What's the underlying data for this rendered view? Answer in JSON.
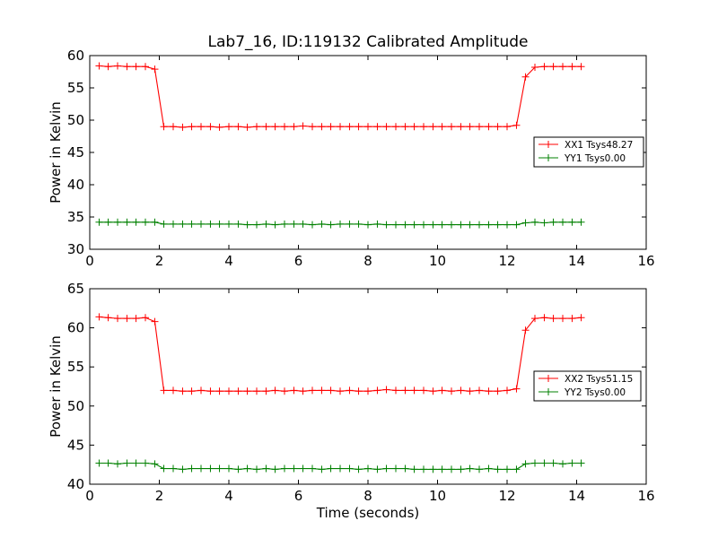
{
  "figure_title": "Lab7_16, ID:119132 Calibrated Amplitude",
  "colors": {
    "series_red": "#ff0000",
    "series_green": "#008000",
    "axes": "#000000",
    "background": "#ffffff"
  },
  "chart_data": [
    {
      "type": "line",
      "title": "Lab7_16, ID:119132 Calibrated Amplitude",
      "xlabel": "",
      "ylabel": "Power in Kelvin",
      "xlim": [
        0,
        16
      ],
      "ylim": [
        30,
        60
      ],
      "xticks": [
        "0",
        "2",
        "4",
        "6",
        "8",
        "10",
        "12",
        "14",
        "16"
      ],
      "yticks": [
        "30",
        "35",
        "40",
        "45",
        "50",
        "55",
        "60"
      ],
      "grid": false,
      "legend_position": "right",
      "marker": "+",
      "x": [
        0.27,
        0.53,
        0.8,
        1.07,
        1.33,
        1.6,
        1.87,
        2.13,
        2.4,
        2.67,
        2.93,
        3.2,
        3.47,
        3.73,
        4.0,
        4.27,
        4.53,
        4.8,
        5.07,
        5.33,
        5.6,
        5.87,
        6.13,
        6.4,
        6.67,
        6.93,
        7.2,
        7.47,
        7.73,
        8.0,
        8.27,
        8.53,
        8.8,
        9.07,
        9.33,
        9.6,
        9.87,
        10.13,
        10.4,
        10.67,
        10.93,
        11.2,
        11.47,
        11.73,
        12.0,
        12.27,
        12.53,
        12.8,
        13.07,
        13.33,
        13.6,
        13.87,
        14.13
      ],
      "series": [
        {
          "name": "XX1 Tsys48.27",
          "color": "#ff0000",
          "values": [
            58.4,
            58.3,
            58.4,
            58.3,
            58.3,
            58.3,
            57.9,
            49.0,
            49.0,
            48.9,
            49.0,
            49.0,
            49.0,
            48.9,
            49.0,
            49.0,
            48.9,
            49.0,
            49.0,
            49.0,
            49.0,
            49.0,
            49.1,
            49.0,
            49.0,
            49.0,
            49.0,
            49.0,
            49.0,
            49.0,
            49.0,
            49.0,
            49.0,
            49.0,
            49.0,
            49.0,
            49.0,
            49.0,
            49.0,
            49.0,
            49.0,
            49.0,
            49.0,
            49.0,
            49.0,
            49.2,
            56.7,
            58.2,
            58.3,
            58.3,
            58.3,
            58.3,
            58.3
          ]
        },
        {
          "name": "YY1 Tsys0.00",
          "color": "#008000",
          "values": [
            34.2,
            34.2,
            34.2,
            34.2,
            34.2,
            34.2,
            34.2,
            33.9,
            33.9,
            33.9,
            33.9,
            33.9,
            33.9,
            33.9,
            33.9,
            33.9,
            33.8,
            33.8,
            33.9,
            33.8,
            33.9,
            33.9,
            33.9,
            33.8,
            33.9,
            33.8,
            33.9,
            33.9,
            33.9,
            33.8,
            33.9,
            33.8,
            33.8,
            33.8,
            33.8,
            33.8,
            33.8,
            33.8,
            33.8,
            33.8,
            33.8,
            33.8,
            33.8,
            33.8,
            33.8,
            33.8,
            34.1,
            34.2,
            34.1,
            34.2,
            34.2,
            34.2,
            34.2
          ]
        }
      ]
    },
    {
      "type": "line",
      "title": "",
      "xlabel": "Time (seconds)",
      "ylabel": "Power in Kelvin",
      "xlim": [
        0,
        16
      ],
      "ylim": [
        40,
        65
      ],
      "xticks": [
        "0",
        "2",
        "4",
        "6",
        "8",
        "10",
        "12",
        "14",
        "16"
      ],
      "yticks": [
        "40",
        "45",
        "50",
        "55",
        "60",
        "65"
      ],
      "grid": false,
      "legend_position": "right",
      "marker": "+",
      "x": [
        0.27,
        0.53,
        0.8,
        1.07,
        1.33,
        1.6,
        1.87,
        2.13,
        2.4,
        2.67,
        2.93,
        3.2,
        3.47,
        3.73,
        4.0,
        4.27,
        4.53,
        4.8,
        5.07,
        5.33,
        5.6,
        5.87,
        6.13,
        6.4,
        6.67,
        6.93,
        7.2,
        7.47,
        7.73,
        8.0,
        8.27,
        8.53,
        8.8,
        9.07,
        9.33,
        9.6,
        9.87,
        10.13,
        10.4,
        10.67,
        10.93,
        11.2,
        11.47,
        11.73,
        12.0,
        12.27,
        12.53,
        12.8,
        13.07,
        13.33,
        13.6,
        13.87,
        14.13
      ],
      "series": [
        {
          "name": "XX2 Tsys51.15",
          "color": "#ff0000",
          "values": [
            61.4,
            61.3,
            61.2,
            61.2,
            61.2,
            61.3,
            60.8,
            52.0,
            52.0,
            51.9,
            51.9,
            52.0,
            51.9,
            51.9,
            51.9,
            51.9,
            51.9,
            51.9,
            51.9,
            52.0,
            51.9,
            52.0,
            51.9,
            52.0,
            52.0,
            52.0,
            51.9,
            52.0,
            51.9,
            51.9,
            52.0,
            52.1,
            52.0,
            52.0,
            52.0,
            52.0,
            51.9,
            52.0,
            51.9,
            52.0,
            51.9,
            52.0,
            51.9,
            51.9,
            52.0,
            52.2,
            59.7,
            61.2,
            61.3,
            61.2,
            61.2,
            61.2,
            61.3
          ]
        },
        {
          "name": "YY2 Tsys0.00",
          "color": "#008000",
          "values": [
            42.7,
            42.7,
            42.6,
            42.7,
            42.7,
            42.7,
            42.6,
            42.0,
            42.0,
            41.9,
            42.0,
            42.0,
            42.0,
            42.0,
            42.0,
            41.9,
            42.0,
            41.9,
            42.0,
            41.9,
            42.0,
            42.0,
            42.0,
            42.0,
            41.9,
            42.0,
            42.0,
            42.0,
            41.9,
            42.0,
            41.9,
            42.0,
            42.0,
            42.0,
            41.9,
            41.9,
            41.9,
            41.9,
            41.9,
            41.9,
            42.0,
            41.9,
            42.0,
            41.9,
            41.9,
            41.9,
            42.6,
            42.7,
            42.7,
            42.7,
            42.6,
            42.7,
            42.7
          ]
        }
      ]
    }
  ]
}
